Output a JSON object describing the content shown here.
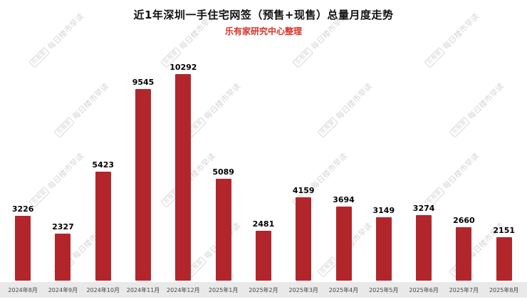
{
  "chart_data": {
    "type": "bar",
    "title": "近1年深圳一手住宅网签（预售+现售）总量月度走势",
    "subtitle": "乐有家研究中心整理",
    "categories": [
      "2024年8月",
      "2024年9月",
      "2024年10月",
      "2024年11月",
      "2024年12月",
      "2025年1月",
      "2025年2月",
      "2025年3月",
      "2025年4月",
      "2025年5月",
      "2025年6月",
      "2025年7月",
      "2025年8月"
    ],
    "values": [
      3226,
      2327,
      5423,
      9545,
      10292,
      5089,
      2481,
      4159,
      3694,
      3149,
      3274,
      2660,
      2151
    ],
    "xlabel": "",
    "ylabel": "",
    "ylim": [
      0,
      10292
    ],
    "grid": false,
    "legend": "none",
    "bar_color": "#b2262b",
    "subtitle_color": "#d93025",
    "axis_strip_color": "#e9e9e9"
  },
  "watermark": {
    "logo": "乐有家",
    "text": "每日楼市早读"
  }
}
